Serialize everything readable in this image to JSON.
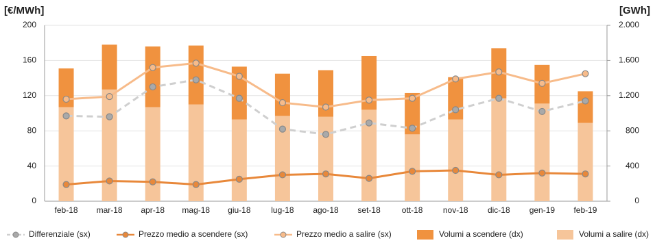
{
  "chart_data": {
    "type": "combo",
    "y_axis_label": "[€/MWh]",
    "y2_axis_label": "[GWh]",
    "categories": [
      "feb-18",
      "mar-18",
      "apr-18",
      "mag-18",
      "giu-18",
      "lug-18",
      "ago-18",
      "set-18",
      "ott-18",
      "nov-18",
      "dic-18",
      "gen-19",
      "feb-19"
    ],
    "ylim": [
      0,
      200
    ],
    "yticks": [
      0,
      40,
      80,
      120,
      160,
      200
    ],
    "y2lim": [
      0,
      2000
    ],
    "y2ticks": [
      0,
      400,
      800,
      {
        "value": 1200,
        "label": "1.200"
      },
      {
        "value": 1600,
        "label": "1.600"
      },
      {
        "value": 2000,
        "label": "2.000"
      }
    ],
    "grid": true,
    "legend": "bottom",
    "series": [
      {
        "name": "Differenziale (sx)",
        "type": "line",
        "dash": true,
        "color": "#cfcfcf",
        "marker_color": "#a9a9a9",
        "values": [
          97,
          96,
          130,
          138,
          117,
          82,
          76,
          89,
          83,
          104,
          117,
          102,
          114
        ]
      },
      {
        "name": "Prezzo medio a scendere (sx)",
        "type": "line",
        "dash": false,
        "color": "#e8883a",
        "marker_color": "#e8883a",
        "values": [
          19,
          23,
          22,
          19,
          25,
          30,
          31,
          26,
          34,
          35,
          30,
          32,
          31
        ]
      },
      {
        "name": "Prezzo medio a salire (sx)",
        "type": "line",
        "dash": false,
        "color": "#f7bb8a",
        "marker_color": "#f7bb8a",
        "values": [
          116,
          119,
          152,
          157,
          142,
          112,
          107,
          115,
          117,
          139,
          147,
          134,
          145
        ]
      },
      {
        "name": "Volumi a scendere (dx)",
        "type": "bar",
        "axis": "y2",
        "color": "#f0923f",
        "values": [
          440,
          510,
          690,
          670,
          600,
          480,
          530,
          610,
          470,
          480,
          570,
          440,
          360
        ]
      },
      {
        "name": "Volumi a salire (dx)",
        "type": "bar",
        "axis": "y2",
        "color": "#f6c59a",
        "values": [
          1070,
          1270,
          1070,
          1100,
          930,
          970,
          960,
          1040,
          760,
          930,
          1170,
          1110,
          890
        ]
      }
    ]
  }
}
